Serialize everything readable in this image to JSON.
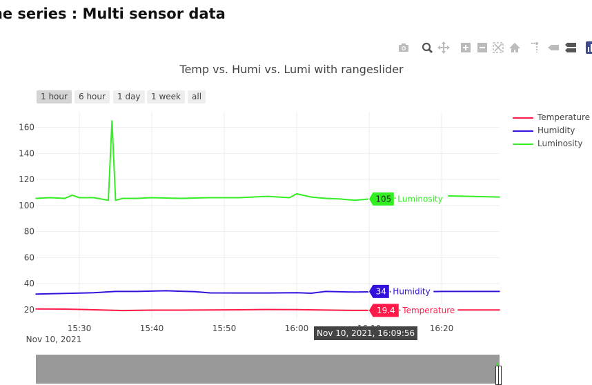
{
  "page": {
    "title": "me series : Multi sensor data"
  },
  "modebar": {
    "buttons": [
      "camera-icon",
      "zoom-icon",
      "pan-icon",
      "zoom-in-icon",
      "zoom-out-icon",
      "autoscale-icon",
      "home-icon",
      "spike-lines-icon",
      "hover-closest-icon",
      "hover-compare-icon",
      "plotly-logo-icon"
    ]
  },
  "range_selector": {
    "buttons": [
      "1 hour",
      "6 hour",
      "1 day",
      "1 week",
      "all"
    ],
    "active": "1 hour"
  },
  "hover": {
    "x_label": "Nov 10, 2021, 16:09:56",
    "luminosity_value": "105",
    "humidity_value": "34",
    "temperature_value": "19.4"
  },
  "colors": {
    "temperature": "#ff1a4a",
    "humidity": "#3311dd",
    "luminosity": "#33ee22",
    "grid": "#eeeeee",
    "rangeslider": "#999999"
  },
  "chart_data": {
    "type": "line",
    "title": "Temp vs. Humi vs. Lumi with rangeslider",
    "xlabel": "",
    "ylabel": "",
    "x_range": [
      "2021-11-10 15:24:00",
      "2021-11-10 16:28:00"
    ],
    "ylim": [
      13,
      172
    ],
    "y_ticks": [
      20,
      40,
      60,
      80,
      100,
      120,
      140,
      160
    ],
    "x_ticks": [
      {
        "t": "2021-11-10 15:30:00",
        "label": "15:30"
      },
      {
        "t": "2021-11-10 15:40:00",
        "label": "15:40"
      },
      {
        "t": "2021-11-10 15:50:00",
        "label": "15:50"
      },
      {
        "t": "2021-11-10 16:00:00",
        "label": "16:00"
      },
      {
        "t": "2021-11-10 16:10:00",
        "label": "16:10"
      },
      {
        "t": "2021-11-10 16:20:00",
        "label": "16:20"
      }
    ],
    "x_date_label": "Nov 10, 2021",
    "grid": true,
    "legend_position": "right",
    "rangeslider": true,
    "series": [
      {
        "name": "Temperature",
        "key": "temperature",
        "x": [
          "2021-11-10 15:24:00",
          "2021-11-10 15:28:00",
          "2021-11-10 15:32:00",
          "2021-11-10 15:36:00",
          "2021-11-10 15:40:00",
          "2021-11-10 15:44:00",
          "2021-11-10 15:48:00",
          "2021-11-10 15:52:00",
          "2021-11-10 15:56:00",
          "2021-11-10 16:00:00",
          "2021-11-10 16:04:00",
          "2021-11-10 16:08:00",
          "2021-11-10 16:12:00",
          "2021-11-10 16:16:00",
          "2021-11-10 16:20:00",
          "2021-11-10 16:24:00",
          "2021-11-10 16:28:00"
        ],
        "y": [
          20.5,
          20.4,
          19.9,
          19.3,
          19.6,
          19.6,
          19.8,
          19.9,
          20.1,
          20.0,
          19.7,
          19.4,
          19.4,
          19.6,
          19.8,
          19.8,
          19.8
        ]
      },
      {
        "name": "Humidity",
        "key": "humidity",
        "x": [
          "2021-11-10 15:24:00",
          "2021-11-10 15:28:00",
          "2021-11-10 15:32:00",
          "2021-11-10 15:35:00",
          "2021-11-10 15:38:00",
          "2021-11-10 15:42:00",
          "2021-11-10 15:46:00",
          "2021-11-10 15:48:00",
          "2021-11-10 15:52:00",
          "2021-11-10 15:56:00",
          "2021-11-10 16:00:00",
          "2021-11-10 16:02:00",
          "2021-11-10 16:04:00",
          "2021-11-10 16:08:00",
          "2021-11-10 16:12:00",
          "2021-11-10 16:16:00",
          "2021-11-10 16:20:00",
          "2021-11-10 16:24:00",
          "2021-11-10 16:28:00"
        ],
        "y": [
          32.0,
          32.5,
          33.0,
          34.0,
          34.0,
          34.5,
          33.8,
          32.9,
          32.8,
          32.8,
          33.0,
          32.6,
          34.0,
          33.5,
          33.8,
          33.8,
          34.0,
          34.0,
          34.0
        ]
      },
      {
        "name": "Luminosity",
        "key": "luminosity",
        "x": [
          "2021-11-10 15:24:00",
          "2021-11-10 15:26:00",
          "2021-11-10 15:28:00",
          "2021-11-10 15:29:00",
          "2021-11-10 15:30:00",
          "2021-11-10 15:32:00",
          "2021-11-10 15:33:00",
          "2021-11-10 15:34:00",
          "2021-11-10 15:34:30",
          "2021-11-10 15:35:00",
          "2021-11-10 15:36:00",
          "2021-11-10 15:38:00",
          "2021-11-10 15:40:00",
          "2021-11-10 15:44:00",
          "2021-11-10 15:48:00",
          "2021-11-10 15:52:00",
          "2021-11-10 15:56:00",
          "2021-11-10 15:59:00",
          "2021-11-10 16:00:00",
          "2021-11-10 16:02:00",
          "2021-11-10 16:04:00",
          "2021-11-10 16:06:00",
          "2021-11-10 16:08:00",
          "2021-11-10 16:10:00",
          "2021-11-10 16:12:00",
          "2021-11-10 16:14:00",
          "2021-11-10 16:16:00",
          "2021-11-10 16:20:00",
          "2021-11-10 16:24:00",
          "2021-11-10 16:28:00"
        ],
        "y": [
          105.5,
          106,
          105.5,
          108,
          106,
          106,
          105,
          104,
          165,
          104,
          105.5,
          105.5,
          106,
          105.5,
          106,
          106,
          107,
          106,
          109,
          106.5,
          105.5,
          105,
          104,
          105,
          104.5,
          106,
          106,
          107.5,
          107,
          106.5
        ]
      }
    ]
  }
}
